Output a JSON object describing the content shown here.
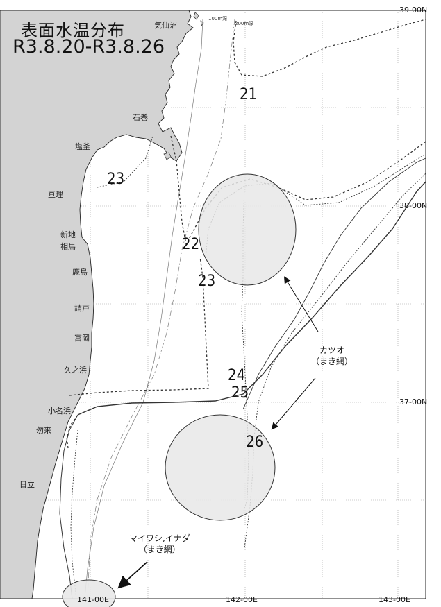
{
  "title": {
    "line1": "表面水温分布",
    "line2": "R3.8.20-R3.8.26"
  },
  "places": {
    "kesennuma": "気仙沼",
    "ishinomaki": "石巻",
    "shiogama": "塩釜",
    "watari": "亘理",
    "shinchi": "新地",
    "soma": "相馬",
    "kashima": "鹿島",
    "ukedo": "請戸",
    "tomioka": "富岡",
    "hisanohama": "久之浜",
    "onahama": "小名浜",
    "nakoso": "勿来",
    "hitachi": "日立"
  },
  "depth_labels": {
    "d100": "100m深",
    "d200": "200m深"
  },
  "isotherms": {
    "t21": "21",
    "t22": "22",
    "t23a": "23",
    "t23b": "23",
    "t24": "24",
    "t25": "25",
    "t26": "26"
  },
  "lat_ticks": {
    "n39": "39-00N",
    "n38": "38-00N",
    "n37": "37-00N"
  },
  "lon_ticks": {
    "e141": "141-00E",
    "e142": "142-00E",
    "e143": "143-00E"
  },
  "fishing_grounds": {
    "katsuo": {
      "line1": "カツオ",
      "line2": "（まき網）"
    },
    "maiwashi": {
      "line1": "マイワシ,イナダ",
      "line2": "（まき網）"
    }
  },
  "colors": {
    "land": "#d3d3d3",
    "sea": "#ffffff",
    "fishing_area": "#e8e8e8",
    "isotherm": "#333333"
  }
}
